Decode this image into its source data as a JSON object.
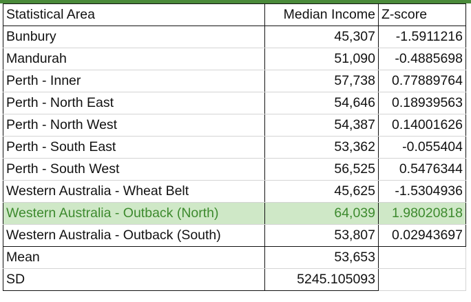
{
  "headers": {
    "area": "Statistical Area",
    "income": "Median Income",
    "z": "Z-score"
  },
  "rows": [
    {
      "area": "Bunbury",
      "income": "45,307",
      "z": "-1.5911216"
    },
    {
      "area": "Mandurah",
      "income": "51,090",
      "z": "-0.4885698"
    },
    {
      "area": "Perth - Inner",
      "income": "57,738",
      "z": "0.77889764"
    },
    {
      "area": "Perth - North East",
      "income": "54,646",
      "z": "0.18939563"
    },
    {
      "area": "Perth - North West",
      "income": "54,387",
      "z": "0.14001626"
    },
    {
      "area": "Perth - South East",
      "income": "53,362",
      "z": "-0.055404"
    },
    {
      "area": "Perth - South West",
      "income": "56,525",
      "z": "0.5476344"
    },
    {
      "area": "Western Australia - Wheat Belt",
      "income": "45,625",
      "z": "-1.5304936"
    },
    {
      "area": "Western Australia - Outback (North)",
      "income": "64,039",
      "z": "1.98020818"
    },
    {
      "area": "Western Australia - Outback (South)",
      "income": "53,807",
      "z": "0.02943697"
    }
  ],
  "summary": {
    "mean_label": "Mean",
    "mean_value": "53,653",
    "sd_label": "SD",
    "sd_value": "5245.105093"
  },
  "highlight_color": "#cfe8c7",
  "highlight_text_color": "#3d8a2e"
}
